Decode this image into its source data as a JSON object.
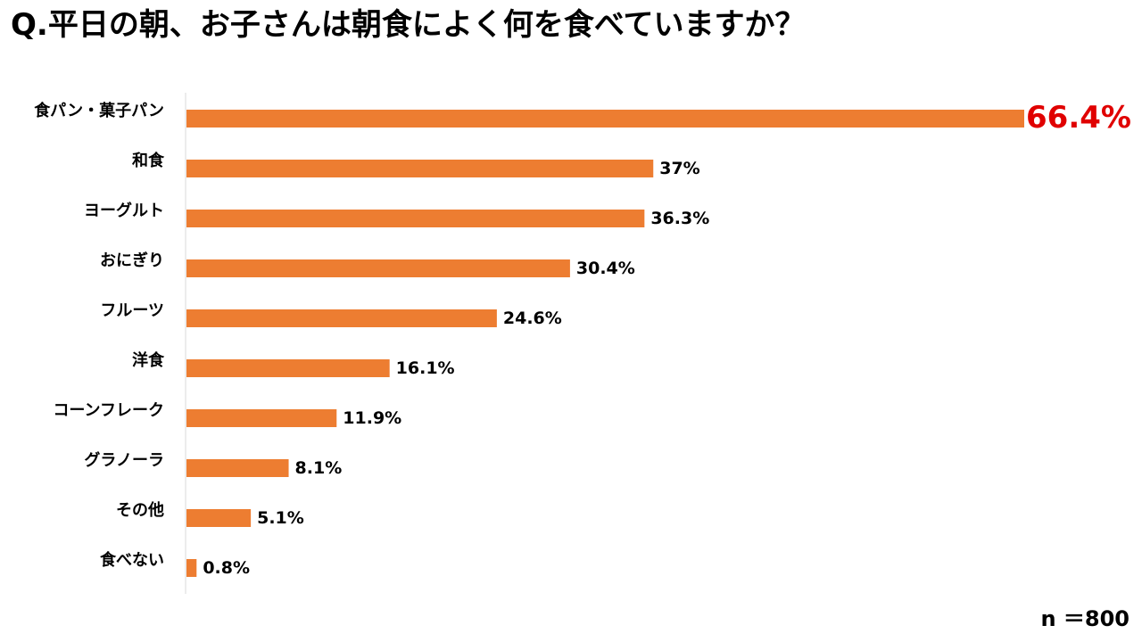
{
  "title": "Q.平日の朝、お子さんは朝食によく何を食べていますか？",
  "sample_size": "n ＝800",
  "colors": {
    "bar": "#ED7D31",
    "highlight_label": "#E00000",
    "label": "#000000",
    "axis": "#D9D9D9"
  },
  "chart_data": {
    "type": "bar",
    "orientation": "horizontal",
    "title": "Q.平日の朝、お子さんは朝食によく何を食べていますか？",
    "xlabel": "",
    "ylabel": "",
    "xlim": [
      0,
      66.4
    ],
    "grid": false,
    "legend": "none",
    "categories": [
      "食パン・菓子パン",
      "和食",
      "ヨーグルト",
      "おにぎり",
      "フルーツ",
      "洋食",
      "コーンフレーク",
      "グラノーラ",
      "その他",
      "食べない"
    ],
    "values": [
      66.4,
      37,
      36.3,
      30.4,
      24.6,
      16.1,
      11.9,
      8.1,
      5.1,
      0.8
    ],
    "value_labels": [
      "66.4%",
      "37%",
      "36.3%",
      "30.4%",
      "24.6%",
      "16.1%",
      "11.9%",
      "8.1%",
      "5.1%",
      "0.8%"
    ],
    "highlight_index": 0
  }
}
